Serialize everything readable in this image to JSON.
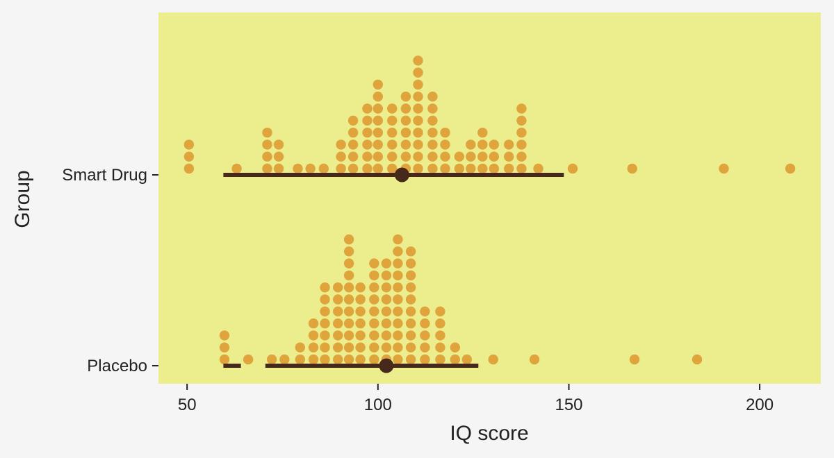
{
  "chart_data": {
    "type": "dotplot",
    "xlabel": "IQ score",
    "ylabel": "Group",
    "xlim": [
      42.5,
      216
    ],
    "x_ticks": [
      50,
      100,
      150,
      200
    ],
    "x_tick_labels": [
      "50",
      "100",
      "150",
      "200"
    ],
    "grid": false,
    "colors": {
      "background": "#f5f5f5",
      "panel": "#ecee8e",
      "dots": "#e0a43c",
      "interval": "#47291b",
      "axis_text": "#222222"
    },
    "categories": [
      "Smart Drug",
      "Placebo"
    ],
    "series": [
      {
        "name": "Smart Drug",
        "stacks": [
          {
            "x": 50.5,
            "count": 3
          },
          {
            "x": 63.0,
            "count": 1
          },
          {
            "x": 71.0,
            "count": 4
          },
          {
            "x": 74.0,
            "count": 3
          },
          {
            "x": 79.0,
            "count": 1
          },
          {
            "x": 82.3,
            "count": 1
          },
          {
            "x": 85.8,
            "count": 1
          },
          {
            "x": 90.3,
            "count": 3
          },
          {
            "x": 93.5,
            "count": 5
          },
          {
            "x": 97.2,
            "count": 6
          },
          {
            "x": 100.0,
            "count": 8
          },
          {
            "x": 103.7,
            "count": 6
          },
          {
            "x": 107.3,
            "count": 7
          },
          {
            "x": 110.5,
            "count": 10
          },
          {
            "x": 114.3,
            "count": 7
          },
          {
            "x": 117.6,
            "count": 4
          },
          {
            "x": 121.3,
            "count": 2
          },
          {
            "x": 124.3,
            "count": 3
          },
          {
            "x": 127.4,
            "count": 4
          },
          {
            "x": 130.4,
            "count": 3
          },
          {
            "x": 134.3,
            "count": 3
          },
          {
            "x": 137.6,
            "count": 6
          },
          {
            "x": 142.0,
            "count": 1
          },
          {
            "x": 151.0,
            "count": 1
          },
          {
            "x": 166.6,
            "count": 1
          },
          {
            "x": 190.6,
            "count": 1
          },
          {
            "x": 208.0,
            "count": 1
          }
        ],
        "point_estimate": 106.3,
        "interval_segments": [
          [
            59.5,
            148.7
          ]
        ]
      },
      {
        "name": "Placebo",
        "stacks": [
          {
            "x": 59.8,
            "count": 3
          },
          {
            "x": 66.0,
            "count": 1
          },
          {
            "x": 72.2,
            "count": 1
          },
          {
            "x": 75.5,
            "count": 1
          },
          {
            "x": 79.6,
            "count": 2
          },
          {
            "x": 83.1,
            "count": 4
          },
          {
            "x": 86.1,
            "count": 7
          },
          {
            "x": 89.5,
            "count": 7
          },
          {
            "x": 92.4,
            "count": 11
          },
          {
            "x": 95.4,
            "count": 7
          },
          {
            "x": 99.0,
            "count": 9
          },
          {
            "x": 102.2,
            "count": 9
          },
          {
            "x": 105.2,
            "count": 11
          },
          {
            "x": 108.6,
            "count": 10
          },
          {
            "x": 112.3,
            "count": 5
          },
          {
            "x": 116.3,
            "count": 5
          },
          {
            "x": 120.2,
            "count": 2
          },
          {
            "x": 123.3,
            "count": 1
          },
          {
            "x": 130.2,
            "count": 1
          },
          {
            "x": 141.0,
            "count": 1
          },
          {
            "x": 167.2,
            "count": 1
          },
          {
            "x": 183.6,
            "count": 1
          }
        ],
        "point_estimate": 102.2,
        "interval_segments": [
          [
            59.5,
            64.1
          ],
          [
            70.5,
            126.3
          ]
        ]
      }
    ]
  }
}
